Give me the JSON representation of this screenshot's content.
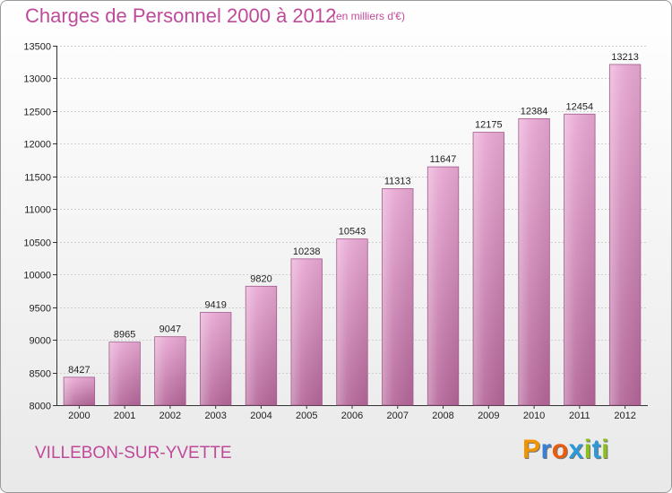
{
  "header": {
    "title": "Charges de Personnel 2000 à 2012",
    "subtitle": "(en milliers d'€)"
  },
  "footer": {
    "commune": "VILLEBON-SUR-YVETTE",
    "brand": "Proxiti",
    "brand_letters": [
      "P",
      "r",
      "o",
      "x",
      "i",
      "t",
      "i"
    ],
    "brand_colors": [
      "#f29400",
      "#3a7fd6",
      "#ea5b0c",
      "#2c9ad8",
      "#8bbf1e",
      "#2c9ad8",
      "#8bbf1e"
    ]
  },
  "chart_data": {
    "type": "bar",
    "title": "Charges de Personnel 2000 à 2012",
    "subtitle": "(en milliers d'€)",
    "categories": [
      "2000",
      "2001",
      "2002",
      "2003",
      "2004",
      "2005",
      "2006",
      "2007",
      "2008",
      "2009",
      "2010",
      "2011",
      "2012"
    ],
    "values": [
      8427,
      8965,
      9047,
      9419,
      9820,
      10238,
      10543,
      11313,
      11647,
      12175,
      12384,
      12454,
      13213
    ],
    "ylim": [
      8000,
      13500
    ],
    "yticks": [
      8000,
      8500,
      9000,
      9500,
      10000,
      10500,
      11000,
      11500,
      12000,
      12500,
      13000,
      13500
    ],
    "grid": true,
    "bar_color": "#d98fbf",
    "xlabel": "",
    "ylabel": ""
  }
}
